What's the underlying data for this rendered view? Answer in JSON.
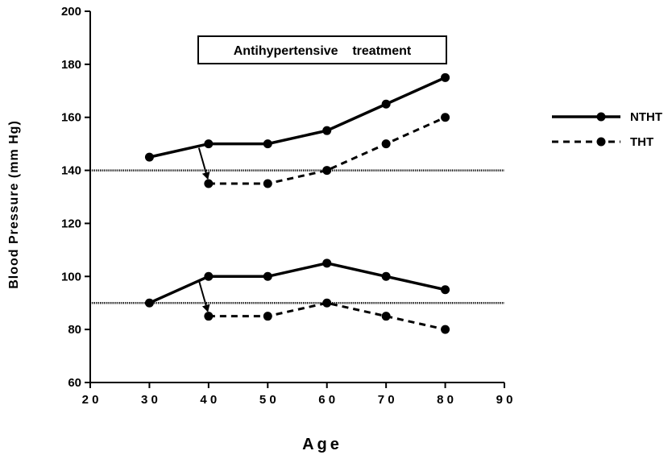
{
  "chart_data": {
    "type": "line",
    "title": "",
    "xlabel": "Age",
    "ylabel": "Blood Pressure (mm Hg)",
    "xlim": [
      20,
      90
    ],
    "ylim": [
      60,
      200
    ],
    "xticks": [
      20,
      30,
      40,
      50,
      60,
      70,
      80,
      90
    ],
    "xtick_labels": [
      "2 0",
      "3 0",
      "4 0",
      "5 0",
      "6 0",
      "7 0",
      "8 0",
      "9 0"
    ],
    "yticks": [
      60,
      80,
      100,
      120,
      140,
      160,
      180,
      200
    ],
    "annotation": "Antihypertensive    treatment",
    "reference_lines": [
      140,
      90
    ],
    "legend_position": "right",
    "grid": false,
    "series": [
      {
        "name": "NTHT",
        "group": "systolic",
        "style": "solid",
        "x": [
          30,
          40,
          50,
          60,
          70,
          80
        ],
        "y": [
          145,
          150,
          150,
          155,
          165,
          175
        ]
      },
      {
        "name": "THT",
        "group": "systolic",
        "style": "dashed",
        "x": [
          40,
          50,
          60,
          70,
          80
        ],
        "y": [
          135,
          135,
          140,
          150,
          160
        ]
      },
      {
        "name": "NTHT",
        "group": "diastolic",
        "style": "solid",
        "x": [
          30,
          40,
          50,
          60,
          70,
          80
        ],
        "y": [
          90,
          100,
          100,
          105,
          100,
          95
        ]
      },
      {
        "name": "THT",
        "group": "diastolic",
        "style": "dashed",
        "x": [
          40,
          50,
          60,
          70,
          80
        ],
        "y": [
          85,
          85,
          90,
          85,
          80
        ]
      }
    ],
    "arrows": [
      {
        "from": [
          40,
          150
        ],
        "to": [
          40,
          135
        ]
      },
      {
        "from": [
          40,
          100
        ],
        "to": [
          40,
          85
        ]
      }
    ]
  }
}
